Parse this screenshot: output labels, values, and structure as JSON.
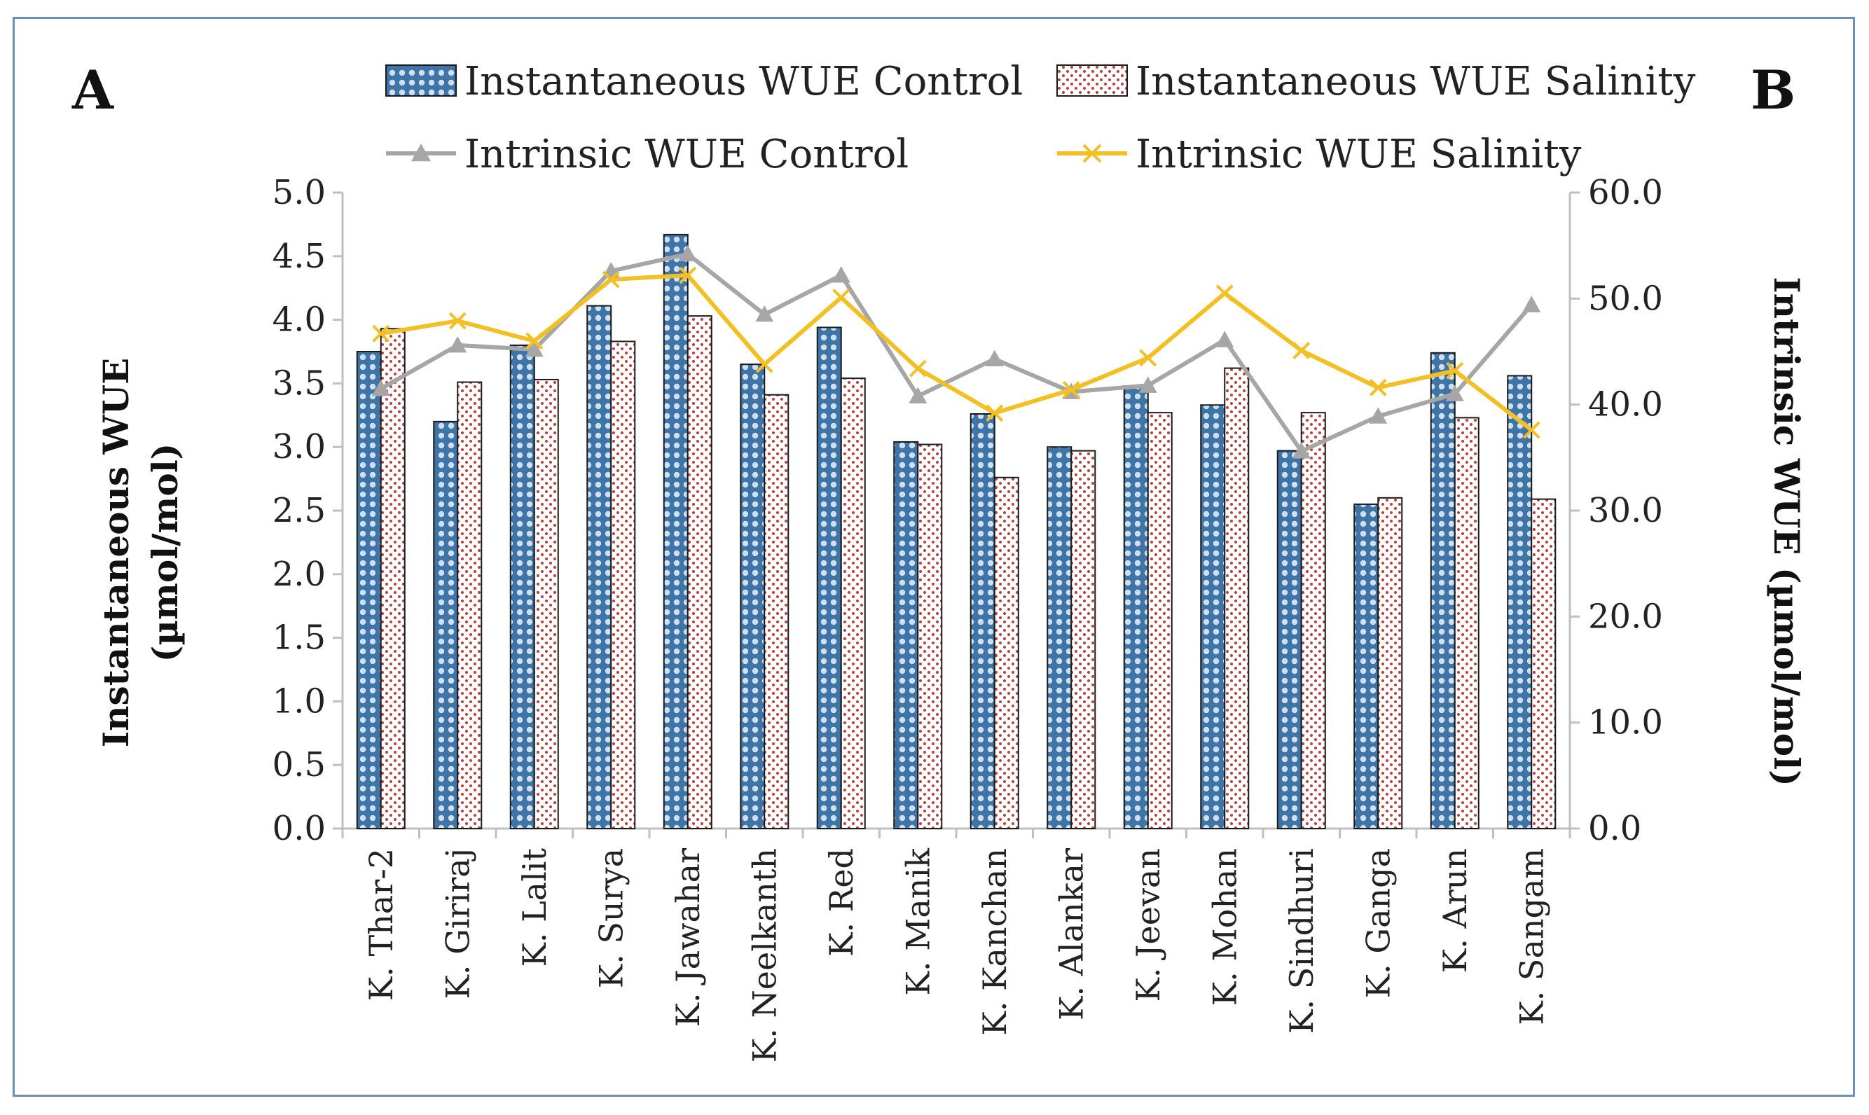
{
  "panel_labels": {
    "left": "A",
    "right": "B"
  },
  "colors": {
    "control_bar": "#3f74a6",
    "control_dot": "#cfe0f0",
    "salinity_bar": "#ffffff",
    "salinity_dot": "#b5403c",
    "intrinsic_control": "#a6a6a6",
    "intrinsic_salinity": "#f2bf24",
    "axis": "#bfbfbf",
    "frame": "#6d8fb3"
  },
  "chart_data": {
    "type": "bar",
    "combo": "bar+line",
    "categories": [
      "K. Thar-2",
      "K. Giriraj",
      "K. Lalit",
      "K. Surya",
      "K. Jawahar",
      "K. Neelkanth",
      "K. Red",
      "K. Manik",
      "K. Kanchan",
      "K. Alankar",
      "K. Jeevan",
      "K. Mohan",
      "K. Sindhuri",
      "K. Ganga",
      "K. Arun",
      "K. Sangam"
    ],
    "bar_series": [
      {
        "name": "Instantaneous WUE Control",
        "axis": "left",
        "values": [
          3.75,
          3.2,
          3.8,
          4.11,
          4.67,
          3.65,
          3.94,
          3.04,
          3.26,
          3.0,
          3.48,
          3.33,
          2.97,
          2.55,
          3.74,
          3.56
        ]
      },
      {
        "name": "Instantaneous WUE Salinity",
        "axis": "left",
        "values": [
          3.93,
          3.51,
          3.53,
          3.83,
          4.03,
          3.41,
          3.54,
          3.02,
          2.76,
          2.97,
          3.27,
          3.62,
          3.27,
          2.6,
          3.23,
          2.59
        ]
      }
    ],
    "line_series": [
      {
        "name": "Intrinsic WUE Control",
        "axis": "right",
        "marker": "triangle",
        "values": [
          41.5,
          45.6,
          45.2,
          52.6,
          54.2,
          48.5,
          52.2,
          40.8,
          44.3,
          41.2,
          41.8,
          46.1,
          35.6,
          38.9,
          41.0,
          49.4
        ]
      },
      {
        "name": "Intrinsic WUE Salinity",
        "axis": "right",
        "marker": "x",
        "values": [
          46.7,
          47.9,
          46.0,
          51.8,
          52.2,
          43.8,
          50.1,
          43.4,
          39.2,
          41.4,
          44.4,
          50.5,
          45.1,
          41.6,
          43.2,
          37.6
        ]
      }
    ],
    "y_left": {
      "label_line1": "Instantaneous WUE",
      "label_line2": "(µmol/mol)",
      "min": 0,
      "max": 5,
      "step": 0.5,
      "ticks": [
        "0.0",
        "0.5",
        "1.0",
        "1.5",
        "2.0",
        "2.5",
        "3.0",
        "3.5",
        "4.0",
        "4.5",
        "5.0"
      ]
    },
    "y_right": {
      "label": "Intrinsic WUE (µmol/mol)",
      "min": 0,
      "max": 60,
      "step": 10,
      "ticks": [
        "0.0",
        "10.0",
        "20.0",
        "30.0",
        "40.0",
        "50.0",
        "60.0"
      ]
    },
    "legend_position": "top",
    "grid": false
  }
}
